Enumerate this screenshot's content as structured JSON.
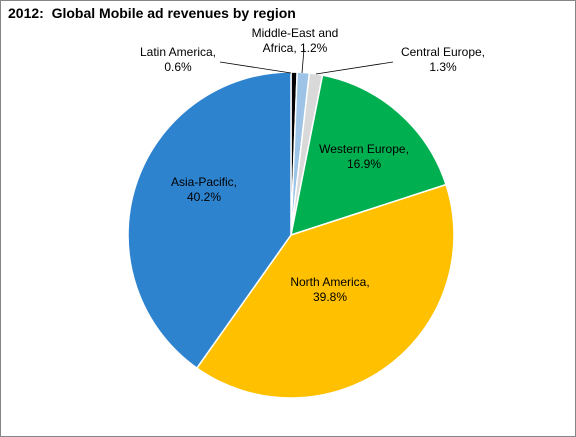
{
  "chart_data": {
    "type": "pie",
    "title": "2012:  Global Mobile ad revenues by region",
    "slices": [
      {
        "label_lines": [
          "Latin America,",
          "0.6%"
        ],
        "name": "Latin America",
        "value": 0.6,
        "color": "#000000"
      },
      {
        "label_lines": [
          "Middle-East and",
          "Africa, 1.2%"
        ],
        "name": "Middle-East and Africa",
        "value": 1.2,
        "color": "#9dc3e6"
      },
      {
        "label_lines": [
          "Central Europe,",
          "1.3%"
        ],
        "name": "Central Europe",
        "value": 1.3,
        "color": "#d9d9d9"
      },
      {
        "label_lines": [
          "Western Europe,",
          "16.9%"
        ],
        "name": "Western Europe",
        "value": 16.9,
        "color": "#00b050"
      },
      {
        "label_lines": [
          "North America,",
          "39.8%"
        ],
        "name": "North America",
        "value": 39.8,
        "color": "#ffc000"
      },
      {
        "label_lines": [
          "Asia-Pacific,",
          "40.2%"
        ],
        "name": "Asia-Pacific",
        "value": 40.2,
        "color": "#2e83cf"
      }
    ]
  }
}
